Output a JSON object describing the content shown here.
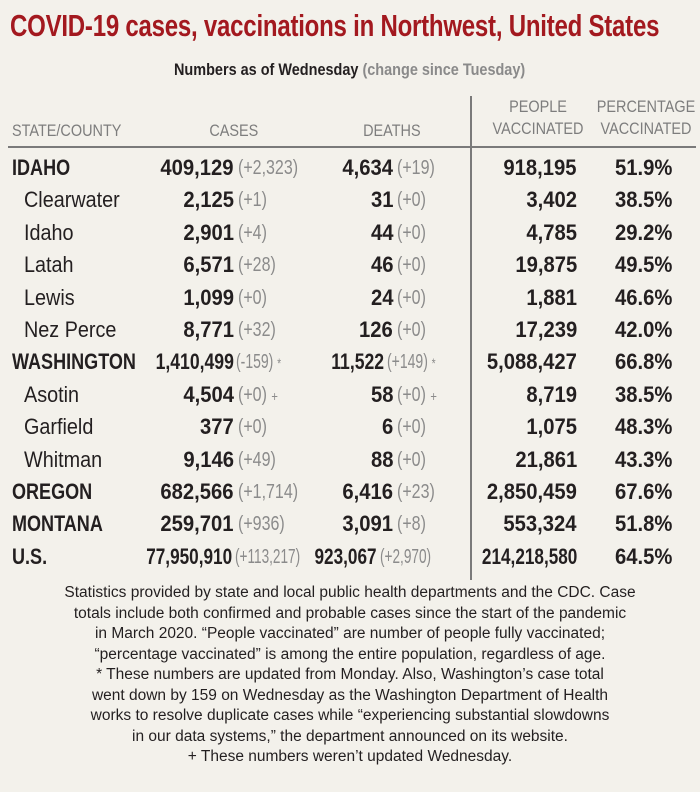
{
  "chart_data": {
    "type": "table",
    "title": "COVID-19 cases, vaccinations in Northwest, United States",
    "subtitle": "Numbers as of Wednesday",
    "subtitle_note": "(change since Tuesday)",
    "colors": {
      "title": "#a3191f",
      "change": "#8b8b8b",
      "header": "#7d7d7d"
    },
    "columns": {
      "state": "STATE/COUNTY",
      "cases": "CASES",
      "deaths": "DEATHS",
      "people_1": "PEOPLE",
      "people_2": "VACCINATED",
      "pct_1": "PERCENTAGE",
      "pct_2": "VACCINATED"
    },
    "rows": [
      {
        "name": "IDAHO",
        "level": "state",
        "cases": "409,129",
        "cases_change": "(+2,323)",
        "cases_mark": "",
        "deaths": "4,634",
        "deaths_change": "(+19)",
        "deaths_mark": "",
        "people": "918,195",
        "pct": "51.9%"
      },
      {
        "name": "Clearwater",
        "level": "county",
        "cases": "2,125",
        "cases_change": "(+1)",
        "cases_mark": "",
        "deaths": "31",
        "deaths_change": "(+0)",
        "deaths_mark": "",
        "people": "3,402",
        "pct": "38.5%"
      },
      {
        "name": "Idaho",
        "level": "county",
        "cases": "2,901",
        "cases_change": "(+4)",
        "cases_mark": "",
        "deaths": "44",
        "deaths_change": "(+0)",
        "deaths_mark": "",
        "people": "4,785",
        "pct": "29.2%"
      },
      {
        "name": "Latah",
        "level": "county",
        "cases": "6,571",
        "cases_change": "(+28)",
        "cases_mark": "",
        "deaths": "46",
        "deaths_change": "(+0)",
        "deaths_mark": "",
        "people": "19,875",
        "pct": "49.5%"
      },
      {
        "name": "Lewis",
        "level": "county",
        "cases": "1,099",
        "cases_change": "(+0)",
        "cases_mark": "",
        "deaths": "24",
        "deaths_change": "(+0)",
        "deaths_mark": "",
        "people": "1,881",
        "pct": "46.6%"
      },
      {
        "name": "Nez Perce",
        "level": "county",
        "cases": "8,771",
        "cases_change": "(+32)",
        "cases_mark": "",
        "deaths": "126",
        "deaths_change": "(+0)",
        "deaths_mark": "",
        "people": "17,239",
        "pct": "42.0%"
      },
      {
        "name": "WASHINGTON",
        "level": "state",
        "cases": "1,410,499",
        "cases_change": "(-159)",
        "cases_mark": "*",
        "deaths": "11,522",
        "deaths_change": "(+149)",
        "deaths_mark": "*",
        "people": "5,088,427",
        "pct": "66.8%"
      },
      {
        "name": "Asotin",
        "level": "county",
        "cases": "4,504",
        "cases_change": "(+0)",
        "cases_mark": "+",
        "deaths": "58",
        "deaths_change": "(+0)",
        "deaths_mark": "+",
        "people": "8,719",
        "pct": "38.5%"
      },
      {
        "name": "Garfield",
        "level": "county",
        "cases": "377",
        "cases_change": "(+0)",
        "cases_mark": "",
        "deaths": "6",
        "deaths_change": "(+0)",
        "deaths_mark": "",
        "people": "1,075",
        "pct": "48.3%"
      },
      {
        "name": "Whitman",
        "level": "county",
        "cases": "9,146",
        "cases_change": "(+49)",
        "cases_mark": "",
        "deaths": "88",
        "deaths_change": "(+0)",
        "deaths_mark": "",
        "people": "21,861",
        "pct": "43.3%"
      },
      {
        "name": "OREGON",
        "level": "state",
        "cases": "682,566",
        "cases_change": "(+1,714)",
        "cases_mark": "",
        "deaths": "6,416",
        "deaths_change": "(+23)",
        "deaths_mark": "",
        "people": "2,850,459",
        "pct": "67.6%"
      },
      {
        "name": "MONTANA",
        "level": "state",
        "cases": "259,701",
        "cases_change": "(+936)",
        "cases_mark": "",
        "deaths": "3,091",
        "deaths_change": "(+8)",
        "deaths_mark": "",
        "people": "553,324",
        "pct": "51.8%"
      },
      {
        "name": "U.S.",
        "level": "state",
        "cases": "77,950,910",
        "cases_change": "(+113,217)",
        "cases_mark": "",
        "deaths": "923,067",
        "deaths_change": "(+2,970)",
        "deaths_mark": "",
        "people": "214,218,580",
        "pct": "64.5%"
      }
    ]
  },
  "notes": {
    "lines": [
      "Statistics provided by state and local public health departments and the CDC. Case",
      "totals include both confirmed and probable cases since the start of the pandemic",
      "in March 2020. “People vaccinated” are number of people fully vaccinated;",
      "“percentage vaccinated” is among the entire population, regardless of age.",
      "* These numbers are updated from Monday. Also, Washington’s case total",
      "went down by 159 on Wednesday as the Washington Department of Health",
      "works to resolve duplicate cases while “experiencing substantial slowdowns",
      "in our data systems,” the department announced on its website.",
      "+ These numbers weren’t updated Wednesday."
    ]
  }
}
